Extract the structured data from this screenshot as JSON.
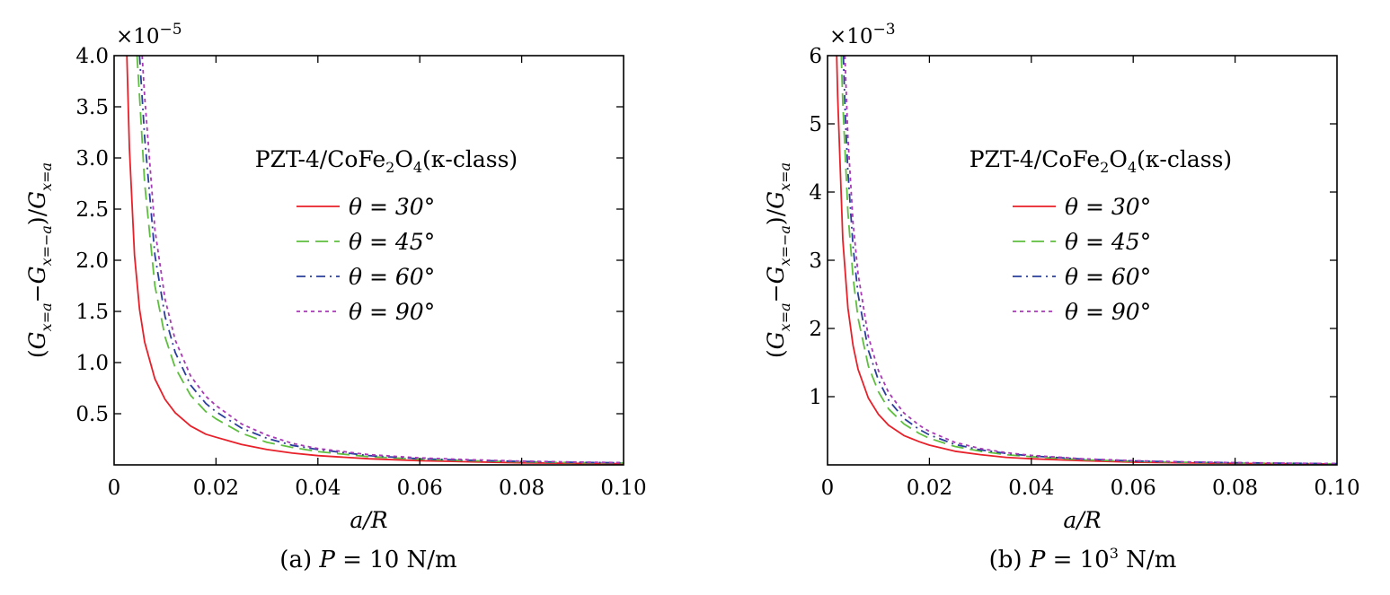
{
  "chart_data": [
    {
      "type": "line",
      "caption": "(a) P = 10 N/m",
      "caption_parts": {
        "prefix": "(a) ",
        "var": "P",
        "mid": " = 10",
        "sup": "",
        "suffix": " N/m"
      },
      "xlabel": "a/R",
      "ylabel": "(G_{x=a} − G_{x=−a}) / G_{x=a}",
      "ylabel_parts": {
        "open": "(",
        "g": "G",
        "sub1": "x=a",
        "minus": "−",
        "sub2": "x=−a",
        "close": ")/",
        "sub3": "x=a"
      },
      "multiplier": "×10",
      "multiplier_exp": "−5",
      "xlim": [
        0,
        0.1
      ],
      "ylim": [
        0,
        4.0
      ],
      "xticks": [
        "0",
        "0.02",
        "0.04",
        "0.06",
        "0.08",
        "0.10"
      ],
      "xtick_values": [
        0,
        0.02,
        0.04,
        0.06,
        0.08,
        0.1
      ],
      "yticks": [
        "0.5",
        "1.0",
        "1.5",
        "2.0",
        "2.5",
        "3.0",
        "3.5",
        "4.0"
      ],
      "ytick_values": [
        0.5,
        1.0,
        1.5,
        2.0,
        2.5,
        3.0,
        3.5,
        4.0
      ],
      "legend_title": "PZT-4/CoFe",
      "legend_title_sub": "2",
      "legend_title_mid": "O",
      "legend_title_sub2": "4",
      "legend_title_end": "(κ-class)",
      "legend_position": "upper-right",
      "series": [
        {
          "name": "θ = 30°",
          "color": "#e8202a",
          "dash": "solid",
          "x": [
            0.0025,
            0.003,
            0.004,
            0.005,
            0.006,
            0.008,
            0.01,
            0.012,
            0.015,
            0.018,
            0.02,
            0.025,
            0.03,
            0.035,
            0.04,
            0.05,
            0.06,
            0.07,
            0.08,
            0.09,
            0.1
          ],
          "y": [
            4.0,
            3.1,
            2.05,
            1.52,
            1.2,
            0.84,
            0.64,
            0.51,
            0.38,
            0.3,
            0.27,
            0.2,
            0.15,
            0.115,
            0.09,
            0.06,
            0.04,
            0.03,
            0.02,
            0.015,
            0.012
          ]
        },
        {
          "name": "θ = 45°",
          "color": "#5fbf3f",
          "dash": "dashed",
          "x": [
            0.0045,
            0.005,
            0.006,
            0.008,
            0.01,
            0.012,
            0.015,
            0.018,
            0.02,
            0.025,
            0.03,
            0.035,
            0.04,
            0.05,
            0.06,
            0.07,
            0.08,
            0.09,
            0.1
          ],
          "y": [
            4.0,
            3.6,
            2.75,
            1.75,
            1.25,
            0.95,
            0.68,
            0.52,
            0.45,
            0.31,
            0.22,
            0.17,
            0.13,
            0.08,
            0.055,
            0.04,
            0.03,
            0.022,
            0.018
          ]
        },
        {
          "name": "θ = 60°",
          "color": "#2a3f9c",
          "dash": "dashdot",
          "x": [
            0.005,
            0.006,
            0.008,
            0.01,
            0.012,
            0.015,
            0.018,
            0.02,
            0.025,
            0.03,
            0.035,
            0.04,
            0.05,
            0.06,
            0.07,
            0.08,
            0.09,
            0.1
          ],
          "y": [
            4.0,
            3.2,
            2.05,
            1.45,
            1.1,
            0.78,
            0.6,
            0.52,
            0.36,
            0.26,
            0.19,
            0.15,
            0.09,
            0.06,
            0.045,
            0.033,
            0.025,
            0.02
          ]
        },
        {
          "name": "θ = 90°",
          "color": "#a83ab5",
          "dash": "dotted",
          "x": [
            0.0055,
            0.006,
            0.008,
            0.01,
            0.012,
            0.015,
            0.018,
            0.02,
            0.025,
            0.03,
            0.035,
            0.04,
            0.05,
            0.06,
            0.07,
            0.08,
            0.09,
            0.1
          ],
          "y": [
            4.0,
            3.6,
            2.3,
            1.62,
            1.22,
            0.87,
            0.67,
            0.58,
            0.4,
            0.29,
            0.21,
            0.16,
            0.1,
            0.068,
            0.05,
            0.037,
            0.028,
            0.022
          ]
        }
      ]
    },
    {
      "type": "line",
      "caption": "(b) P = 10³ N/m",
      "caption_parts": {
        "prefix": "(b) ",
        "var": "P",
        "mid": " = 10",
        "sup": "3",
        "suffix": " N/m"
      },
      "xlabel": "a/R",
      "ylabel": "(G_{x=a} − G_{x=−a}) / G_{x=a}",
      "ylabel_parts": {
        "open": "(",
        "g": "G",
        "sub1": "x=a",
        "minus": "−",
        "sub2": "x=−a",
        "close": ")/",
        "sub3": "x=a"
      },
      "multiplier": "×10",
      "multiplier_exp": "−3",
      "xlim": [
        0,
        0.1
      ],
      "ylim": [
        0,
        6.0
      ],
      "xticks": [
        "0",
        "0.02",
        "0.04",
        "0.06",
        "0.08",
        "0.10"
      ],
      "xtick_values": [
        0,
        0.02,
        0.04,
        0.06,
        0.08,
        0.1
      ],
      "yticks": [
        "1",
        "2",
        "3",
        "4",
        "5",
        "6"
      ],
      "ytick_values": [
        1,
        2,
        3,
        4,
        5,
        6
      ],
      "legend_title": "PZT-4/CoFe",
      "legend_title_sub": "2",
      "legend_title_mid": "O",
      "legend_title_sub2": "4",
      "legend_title_end": "(κ-class)",
      "legend_position": "upper-right",
      "series": [
        {
          "name": "θ = 30°",
          "color": "#e8202a",
          "dash": "solid",
          "x": [
            0.0018,
            0.002,
            0.003,
            0.004,
            0.005,
            0.006,
            0.008,
            0.01,
            0.012,
            0.015,
            0.018,
            0.02,
            0.025,
            0.03,
            0.035,
            0.04,
            0.05,
            0.06,
            0.07,
            0.08,
            0.09,
            0.1
          ],
          "y": [
            6.0,
            5.4,
            3.3,
            2.3,
            1.75,
            1.4,
            0.98,
            0.74,
            0.58,
            0.43,
            0.34,
            0.29,
            0.2,
            0.15,
            0.11,
            0.09,
            0.06,
            0.04,
            0.03,
            0.022,
            0.017,
            0.013
          ]
        },
        {
          "name": "θ = 45°",
          "color": "#5fbf3f",
          "dash": "dashed",
          "x": [
            0.0027,
            0.003,
            0.004,
            0.005,
            0.006,
            0.008,
            0.01,
            0.012,
            0.015,
            0.018,
            0.02,
            0.025,
            0.03,
            0.035,
            0.04,
            0.05,
            0.06,
            0.07,
            0.08,
            0.09,
            0.1
          ],
          "y": [
            6.0,
            5.3,
            3.7,
            2.75,
            2.15,
            1.45,
            1.07,
            0.82,
            0.6,
            0.46,
            0.39,
            0.27,
            0.2,
            0.15,
            0.12,
            0.075,
            0.052,
            0.038,
            0.028,
            0.021,
            0.016
          ]
        },
        {
          "name": "θ = 60°",
          "color": "#2a3f9c",
          "dash": "dashdot",
          "x": [
            0.0031,
            0.0035,
            0.004,
            0.005,
            0.006,
            0.008,
            0.01,
            0.012,
            0.015,
            0.018,
            0.02,
            0.025,
            0.03,
            0.035,
            0.04,
            0.05,
            0.06,
            0.07,
            0.08,
            0.09,
            0.1
          ],
          "y": [
            6.0,
            5.1,
            4.3,
            3.2,
            2.5,
            1.68,
            1.24,
            0.95,
            0.68,
            0.52,
            0.44,
            0.3,
            0.22,
            0.17,
            0.13,
            0.085,
            0.058,
            0.042,
            0.031,
            0.024,
            0.018
          ]
        },
        {
          "name": "θ = 90°",
          "color": "#a83ab5",
          "dash": "dotted",
          "x": [
            0.0034,
            0.004,
            0.005,
            0.006,
            0.008,
            0.01,
            0.012,
            0.015,
            0.018,
            0.02,
            0.025,
            0.03,
            0.035,
            0.04,
            0.05,
            0.06,
            0.07,
            0.08,
            0.09,
            0.1
          ],
          "y": [
            6.0,
            4.8,
            3.55,
            2.8,
            1.88,
            1.38,
            1.06,
            0.76,
            0.58,
            0.49,
            0.33,
            0.24,
            0.18,
            0.14,
            0.09,
            0.062,
            0.045,
            0.033,
            0.025,
            0.019
          ]
        }
      ]
    }
  ]
}
